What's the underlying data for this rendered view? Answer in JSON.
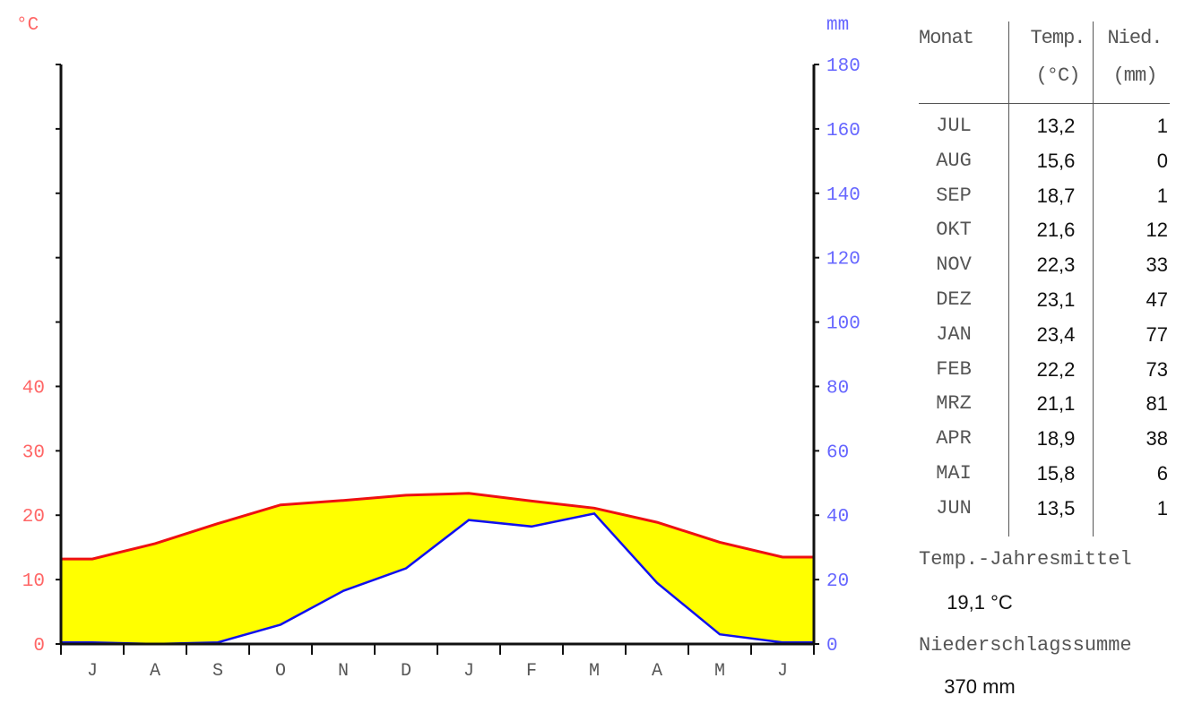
{
  "chart_data": {
    "type": "area",
    "temp_unit": "°C",
    "prec_unit": "mm",
    "categories": [
      "J",
      "A",
      "S",
      "O",
      "N",
      "D",
      "J",
      "F",
      "M",
      "A",
      "M",
      "J"
    ],
    "months": [
      "JUL",
      "AUG",
      "SEP",
      "OKT",
      "NOV",
      "DEZ",
      "JAN",
      "FEB",
      "MRZ",
      "APR",
      "MAI",
      "JUN"
    ],
    "temperature": [
      13.2,
      15.6,
      18.7,
      21.6,
      22.3,
      23.1,
      23.4,
      22.2,
      21.1,
      18.9,
      15.8,
      13.5
    ],
    "precipitation": [
      1,
      0,
      1,
      12,
      33,
      47,
      77,
      73,
      81,
      38,
      6,
      1
    ],
    "temp_ticks": [
      0,
      10,
      20,
      30,
      40
    ],
    "prec_ticks": [
      0,
      20,
      40,
      60,
      80,
      100,
      120,
      140,
      160,
      180
    ],
    "temp_ylim": [
      0,
      90
    ],
    "prec_ylim": [
      0,
      180
    ],
    "colors": {
      "temp": "#ee1111",
      "temp_labels": "#ff6666",
      "prec": "#1111ee",
      "prec_labels": "#6666ff",
      "arid_fill": "#ffff00"
    }
  },
  "table": {
    "headers": {
      "month": "Monat",
      "temp_line1": "Temp.",
      "temp_line2": "(°C)",
      "prec_line1": "Nied.",
      "prec_line2": "(mm)"
    },
    "rows": [
      {
        "month": "JUL",
        "temp": "13,2",
        "prec": "1"
      },
      {
        "month": "AUG",
        "temp": "15,6",
        "prec": "0"
      },
      {
        "month": "SEP",
        "temp": "18,7",
        "prec": "1"
      },
      {
        "month": "OKT",
        "temp": "21,6",
        "prec": "12"
      },
      {
        "month": "NOV",
        "temp": "22,3",
        "prec": "33"
      },
      {
        "month": "DEZ",
        "temp": "23,1",
        "prec": "47"
      },
      {
        "month": "JAN",
        "temp": "23,4",
        "prec": "77"
      },
      {
        "month": "FEB",
        "temp": "22,2",
        "prec": "73"
      },
      {
        "month": "MRZ",
        "temp": "21,1",
        "prec": "81"
      },
      {
        "month": "APR",
        "temp": "18,9",
        "prec": "38"
      },
      {
        "month": "MAI",
        "temp": "15,8",
        "prec": "6"
      },
      {
        "month": "JUN",
        "temp": "13,5",
        "prec": "1"
      }
    ]
  },
  "summary": {
    "temp_label": "Temp.-Jahresmittel",
    "temp_value": "19,1 °C",
    "prec_label": "Niederschlagssumme",
    "prec_value": "370 mm"
  }
}
